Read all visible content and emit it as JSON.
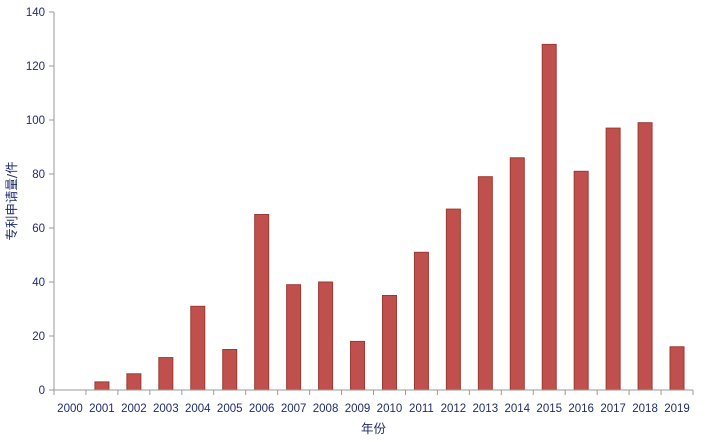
{
  "chart_data": {
    "type": "bar",
    "title": "",
    "xlabel": "年份",
    "ylabel": "专利申请量/件",
    "categories": [
      "2000",
      "2001",
      "2002",
      "2003",
      "2004",
      "2005",
      "2006",
      "2007",
      "2008",
      "2009",
      "2010",
      "2011",
      "2012",
      "2013",
      "2014",
      "2015",
      "2016",
      "2017",
      "2018",
      "2019"
    ],
    "values": [
      0,
      3,
      6,
      12,
      31,
      15,
      65,
      39,
      40,
      18,
      35,
      51,
      67,
      79,
      86,
      128,
      81,
      97,
      99,
      16
    ],
    "ylim": [
      0,
      140
    ],
    "yticks": [
      0,
      20,
      40,
      60,
      80,
      100,
      120,
      140
    ],
    "grid": false,
    "legend": "none",
    "colors": {
      "bar_fill": "#c0504d",
      "bar_stroke": "#9c3a33",
      "text": "#1f2d6b",
      "axis": "#9a9a9a"
    }
  }
}
